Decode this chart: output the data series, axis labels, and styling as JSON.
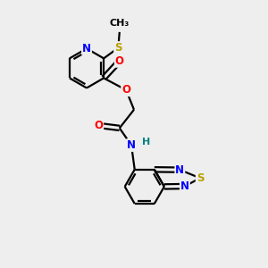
{
  "bg_color": "#eeeeee",
  "bond_color": "#000000",
  "N_color": "#0000ff",
  "S_color": "#b8a000",
  "O_color": "#ff0000",
  "H_color": "#008080",
  "line_width": 1.6,
  "font_size": 8.5,
  "xlim": [
    0,
    10
  ],
  "ylim": [
    0,
    10
  ]
}
